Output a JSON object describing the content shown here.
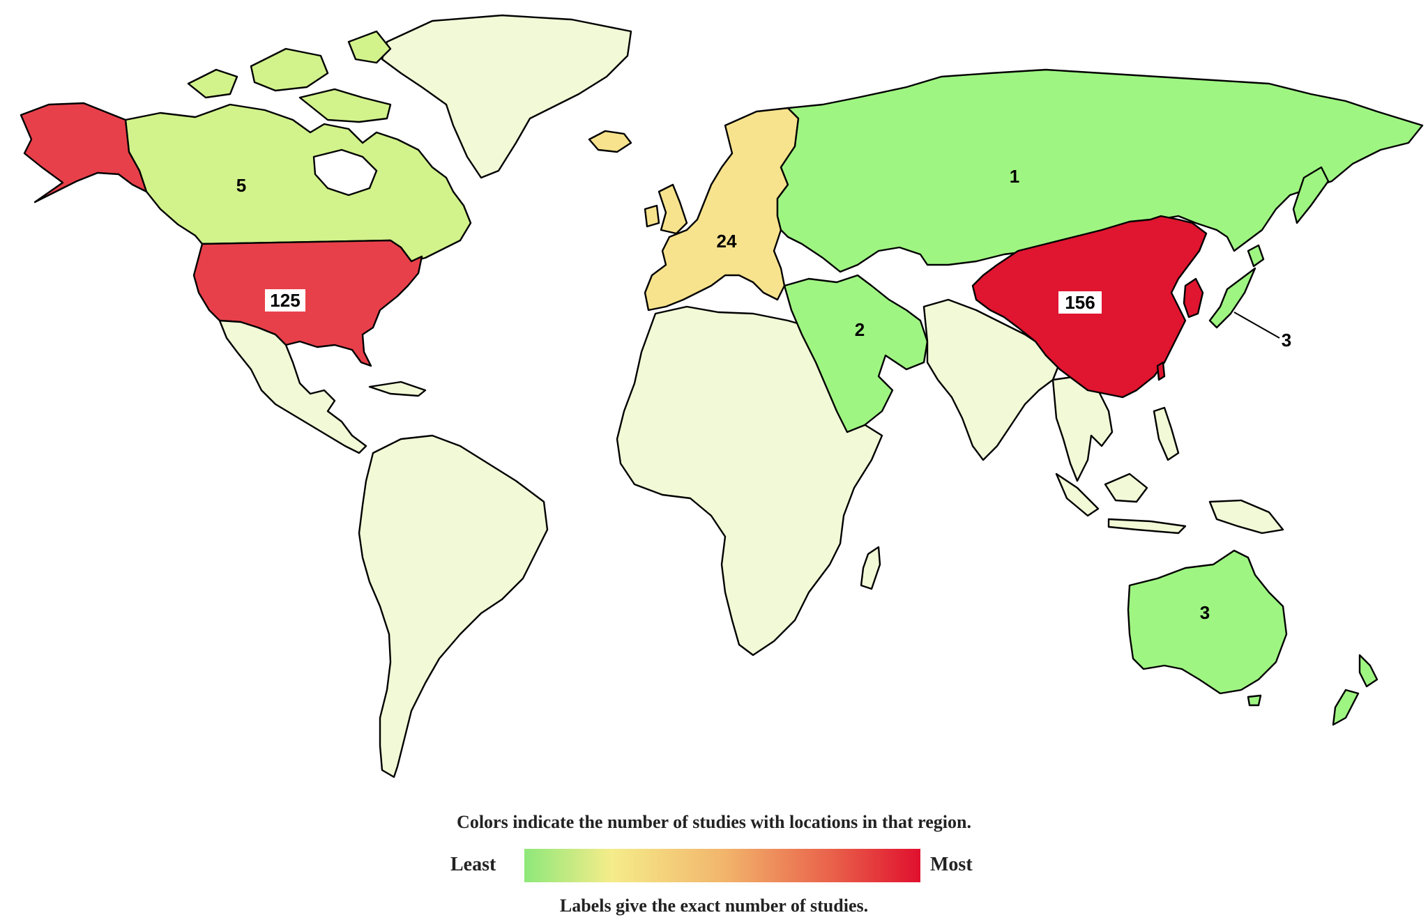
{
  "legend": {
    "caption": "Colors indicate the number of studies with locations in that region.",
    "least_label": "Least",
    "most_label": "Most",
    "note": "Labels give the exact number of studies."
  },
  "colors": {
    "none": "#f1f9d6",
    "low": "#9ff582",
    "low_mid": "#d2f28b",
    "mid": "#f7e38d",
    "high": "#e8404a",
    "highest": "#e0152f"
  },
  "regions": {
    "canada": {
      "count": "5"
    },
    "united_states": {
      "count": "125"
    },
    "europe": {
      "count": "24"
    },
    "russia": {
      "count": "1"
    },
    "middle_east": {
      "count": "2"
    },
    "china": {
      "count": "156"
    },
    "japan": {
      "count": "3"
    },
    "australia": {
      "count": "3"
    }
  }
}
